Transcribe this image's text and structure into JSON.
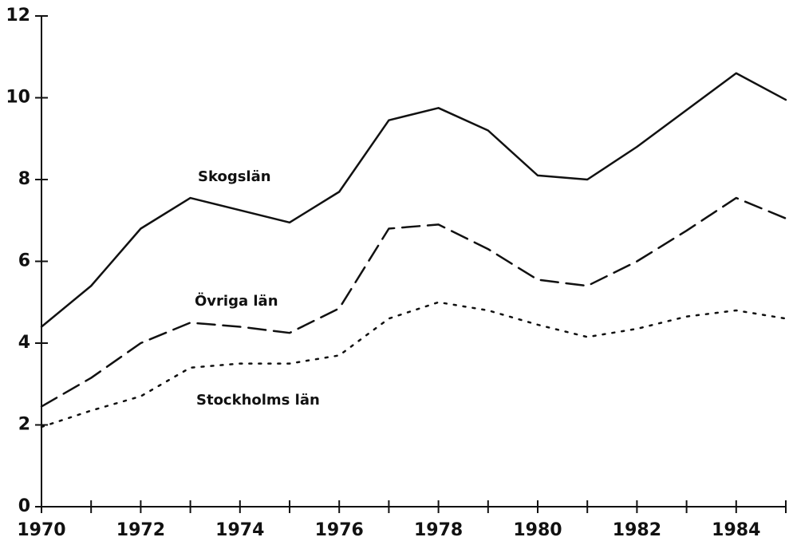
{
  "chart_data": {
    "type": "line",
    "x": [
      1970,
      1971,
      1972,
      1973,
      1974,
      1975,
      1976,
      1977,
      1978,
      1979,
      1980,
      1981,
      1982,
      1983,
      1984,
      1985
    ],
    "series": [
      {
        "name": "Skogslän",
        "color": "#111111",
        "style": "solid",
        "values": [
          4.4,
          5.4,
          6.8,
          7.55,
          7.25,
          6.95,
          7.7,
          9.45,
          9.75,
          9.2,
          8.1,
          8.0,
          8.8,
          9.7,
          10.6,
          9.95
        ]
      },
      {
        "name": "Övriga län",
        "color": "#111111",
        "style": "dashed",
        "values": [
          2.45,
          3.15,
          4.0,
          4.5,
          4.4,
          4.25,
          4.85,
          6.8,
          6.9,
          6.3,
          5.55,
          5.4,
          6.0,
          6.75,
          7.55,
          7.05
        ]
      },
      {
        "name": "Stockholms län",
        "color": "#111111",
        "style": "dotted",
        "values": [
          1.95,
          2.35,
          2.7,
          3.4,
          3.5,
          3.5,
          3.7,
          4.6,
          5.0,
          4.8,
          4.45,
          4.15,
          4.35,
          4.65,
          4.8,
          4.6
        ]
      }
    ],
    "xlim": [
      1970,
      1985
    ],
    "xticks": [
      1970,
      1972,
      1974,
      1976,
      1978,
      1980,
      1982,
      1984
    ],
    "xticks_minor": [
      1971,
      1973,
      1975,
      1977,
      1979,
      1981,
      1983,
      1985
    ],
    "ylim": [
      0,
      12
    ],
    "yticks": [
      0,
      2,
      4,
      6,
      8,
      10,
      12
    ],
    "grid": false
  }
}
